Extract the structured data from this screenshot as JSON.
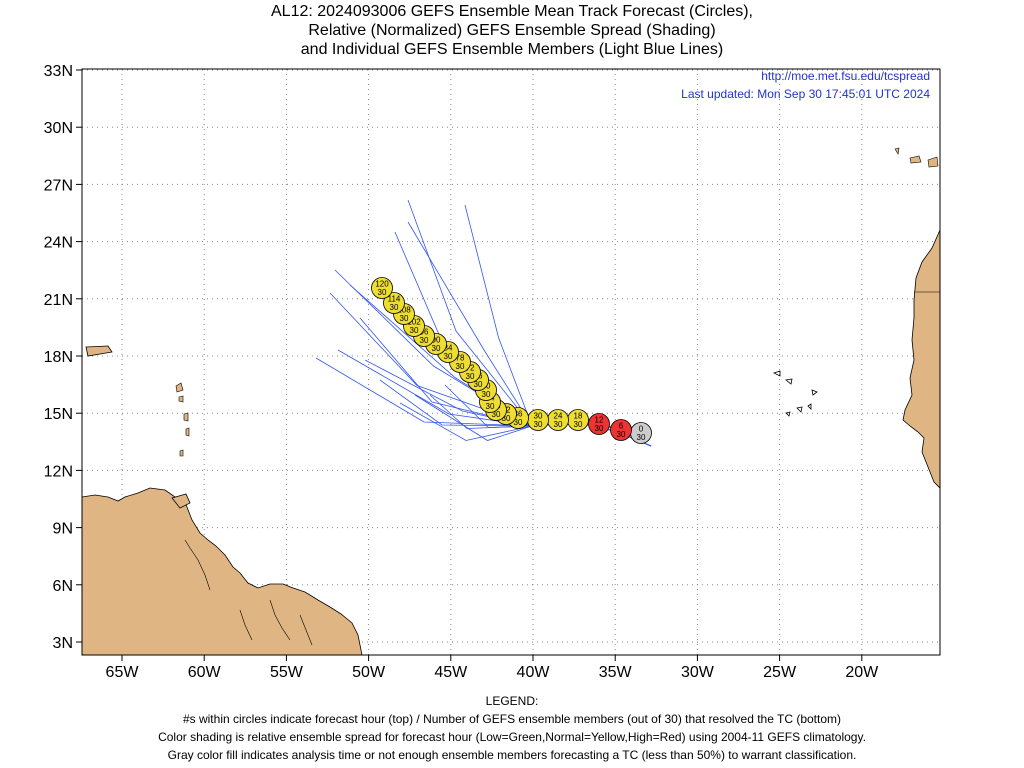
{
  "header": {
    "title_line1": "AL12: 2024093006 GEFS Ensemble Mean Track Forecast (Circles),",
    "title_line2": "Relative (Normalized) GEFS Ensemble Spread (Shading)",
    "title_line3": "and Individual GEFS Ensemble Members (Light Blue Lines)"
  },
  "map": {
    "url_text": "http://moe.met.fsu.edu/tcspread",
    "last_updated": "Last updated: Mon Sep 30 17:45:01 UTC 2024",
    "lat_labels": [
      "33N",
      "30N",
      "27N",
      "24N",
      "21N",
      "18N",
      "15N",
      "12N",
      "9N",
      "6N",
      "3N"
    ],
    "lon_labels": [
      "65W",
      "60W",
      "55W",
      "50W",
      "45W",
      "40W",
      "35W",
      "30W",
      "25W",
      "20W"
    ],
    "colors": {
      "land": "#dfb683",
      "member_lines": "#3355ee",
      "high": "#ee3333",
      "normal": "#eedd33",
      "analysis": "#cccccc",
      "info_text": "#2233cc"
    }
  },
  "forecast_points": [
    {
      "hour": "120",
      "members": "30",
      "spread": "normal"
    },
    {
      "hour": "114",
      "members": "30",
      "spread": "normal"
    },
    {
      "hour": "108",
      "members": "30",
      "spread": "normal"
    },
    {
      "hour": "102",
      "members": "30",
      "spread": "normal"
    },
    {
      "hour": "96",
      "members": "30",
      "spread": "normal"
    },
    {
      "hour": "90",
      "members": "30",
      "spread": "normal"
    },
    {
      "hour": "84",
      "members": "30",
      "spread": "normal"
    },
    {
      "hour": "78",
      "members": "30",
      "spread": "normal"
    },
    {
      "hour": "72",
      "members": "30",
      "spread": "normal"
    },
    {
      "hour": "66",
      "members": "30",
      "spread": "normal"
    },
    {
      "hour": "60",
      "members": "30",
      "spread": "normal"
    },
    {
      "hour": "54",
      "members": "30",
      "spread": "normal"
    },
    {
      "hour": "48",
      "members": "30",
      "spread": "normal"
    },
    {
      "hour": "42",
      "members": "30",
      "spread": "normal"
    },
    {
      "hour": "36",
      "members": "30",
      "spread": "normal"
    },
    {
      "hour": "30",
      "members": "30",
      "spread": "normal"
    },
    {
      "hour": "24",
      "members": "30",
      "spread": "normal"
    },
    {
      "hour": "18",
      "members": "30",
      "spread": "normal"
    },
    {
      "hour": "12",
      "members": "30",
      "spread": "high"
    },
    {
      "hour": "6",
      "members": "30",
      "spread": "high"
    },
    {
      "hour": "0",
      "members": "30",
      "spread": "analysis"
    }
  ],
  "legend": {
    "heading": "LEGEND:",
    "line1": "#s within circles indicate forecast hour (top) / Number of GEFS ensemble members (out of 30) that resolved the TC (bottom)",
    "line2": "Color shading is relative ensemble spread for forecast hour (Low=Green,Normal=Yellow,High=Red) using 2004-11 GEFS climatology.",
    "line3": "Gray color fill indicates analysis time or not enough ensemble members forecasting a TC (less than 50%) to warrant classification."
  }
}
